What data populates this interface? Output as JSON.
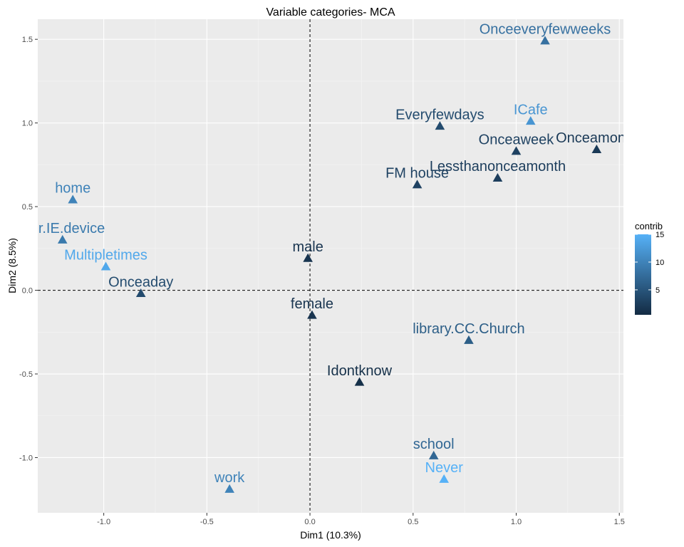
{
  "chart_data": {
    "type": "scatter",
    "title": "Variable categories- MCA",
    "xlabel": "Dim1 (10.3%)",
    "ylabel": "Dim2 (8.5%)",
    "xlim": [
      -1.32,
      1.52
    ],
    "ylim": [
      -1.33,
      1.62
    ],
    "x_ticks": [
      -1.0,
      -0.5,
      0.0,
      0.5,
      1.0,
      1.5
    ],
    "x_tick_labels": [
      "-1.0",
      "-0.5",
      "0.0",
      "0.5",
      "1.0",
      "1.5"
    ],
    "y_ticks": [
      -1.0,
      -0.5,
      0.0,
      0.5,
      1.0,
      1.5
    ],
    "y_tick_labels": [
      "-1.0",
      "-0.5",
      "0.0",
      "0.5",
      "1.0",
      "1.5"
    ],
    "reference_lines": {
      "x": 0,
      "y": 0,
      "style": "dashed"
    },
    "grid": true,
    "legend": {
      "title": "contrib",
      "placement": "right",
      "range": [
        0.5,
        15
      ],
      "ticks": [
        5,
        10,
        15
      ],
      "tick_labels": [
        "5",
        "10",
        "15"
      ],
      "color_low": "#132B43",
      "color_high": "#56B1F7"
    },
    "points": [
      {
        "label": "Onceeveryfewweeks",
        "x": 1.14,
        "y": 1.49,
        "contrib": 8
      },
      {
        "label": "ICafe",
        "x": 1.07,
        "y": 1.01,
        "contrib": 12
      },
      {
        "label": "Everyfewdays",
        "x": 0.63,
        "y": 0.98,
        "contrib": 4
      },
      {
        "label": "Onceamonth",
        "x": 1.39,
        "y": 0.84,
        "contrib": 2
      },
      {
        "label": "Onceaweek",
        "x": 1.0,
        "y": 0.83,
        "contrib": 3
      },
      {
        "label": "Lessthanonceamonth",
        "x": 0.91,
        "y": 0.67,
        "contrib": 2.5
      },
      {
        "label": "FM house",
        "x": 0.52,
        "y": 0.63,
        "contrib": 3
      },
      {
        "label": "home",
        "x": -1.15,
        "y": 0.54,
        "contrib": 10
      },
      {
        "label": "whr.IE.device",
        "x": -1.2,
        "y": 0.3,
        "contrib": 9
      },
      {
        "label": "Multipletimes",
        "x": -0.99,
        "y": 0.14,
        "contrib": 14
      },
      {
        "label": "male",
        "x": -0.01,
        "y": 0.19,
        "contrib": 1.5
      },
      {
        "label": "Onceaday",
        "x": -0.82,
        "y": -0.02,
        "contrib": 4
      },
      {
        "label": "female",
        "x": 0.01,
        "y": -0.15,
        "contrib": 1.5
      },
      {
        "label": "library.CC.Church",
        "x": 0.77,
        "y": -0.3,
        "contrib": 6
      },
      {
        "label": "Idontknow",
        "x": 0.24,
        "y": -0.55,
        "contrib": 1
      },
      {
        "label": "school",
        "x": 0.6,
        "y": -0.99,
        "contrib": 7
      },
      {
        "label": "Never",
        "x": 0.65,
        "y": -1.13,
        "contrib": 15
      },
      {
        "label": "work",
        "x": -0.39,
        "y": -1.19,
        "contrib": 10
      }
    ]
  }
}
